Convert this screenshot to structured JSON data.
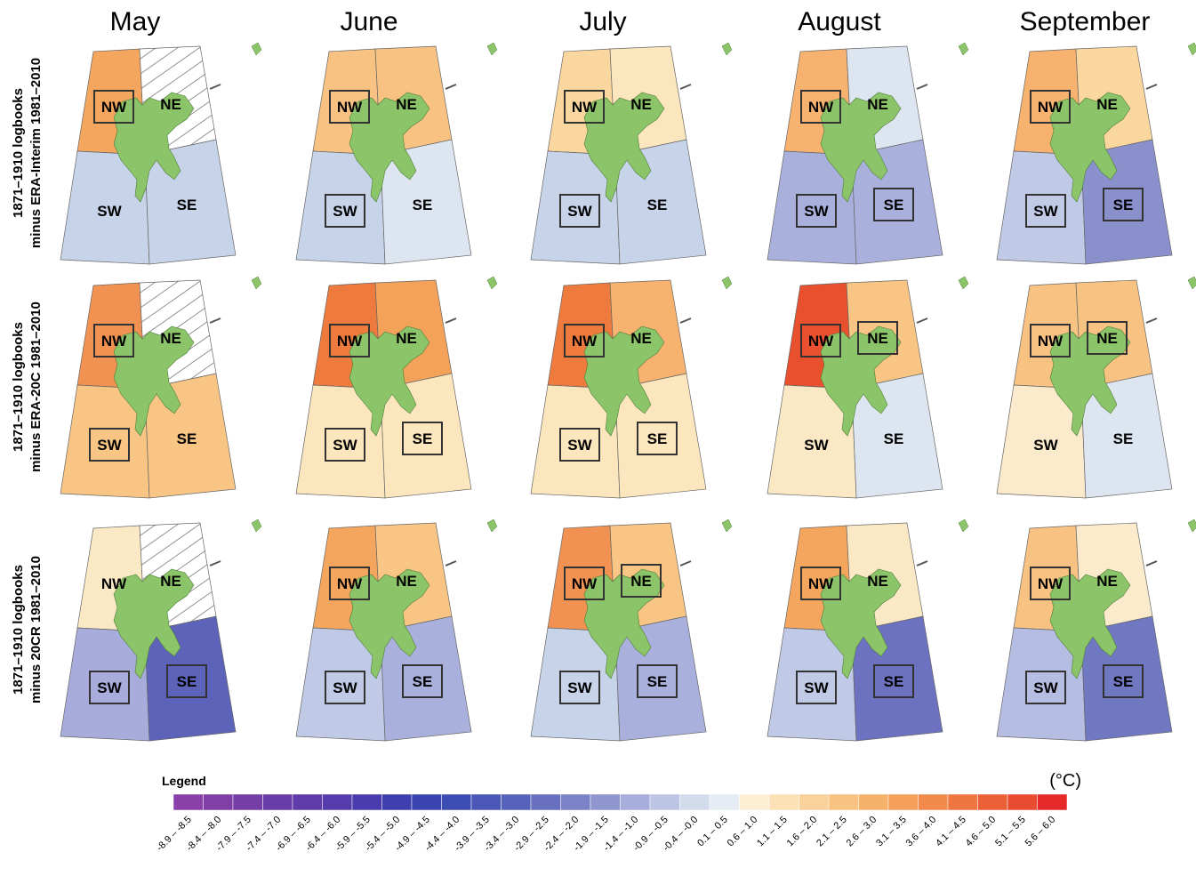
{
  "columns": [
    "May",
    "June",
    "July",
    "August",
    "September"
  ],
  "row_labels": [
    [
      "1871–1910 logbooks",
      "minus ERA-Interim 1981–2010"
    ],
    [
      "1871–1910 logbooks",
      "minus ERA-20C 1981–2010"
    ],
    [
      "1871–1910 logbooks",
      "minus 20CR 1981–2010"
    ]
  ],
  "panels": [
    [
      {
        "regions": [
          {
            "label": "NW",
            "color": "#f4a65e",
            "boxed": true,
            "hatched": false
          },
          {
            "label": "NE",
            "color": "#ffffff",
            "boxed": false,
            "hatched": true
          },
          {
            "label": "SW",
            "color": "#c7d3e8",
            "boxed": false,
            "hatched": false
          },
          {
            "label": "SE",
            "color": "#c7d3e8",
            "boxed": false,
            "hatched": false
          }
        ]
      },
      {
        "regions": [
          {
            "label": "NW",
            "color": "#f8c283",
            "boxed": true,
            "hatched": false
          },
          {
            "label": "NE",
            "color": "#f8c283",
            "boxed": false,
            "hatched": false
          },
          {
            "label": "SW",
            "color": "#c7d3e8",
            "boxed": true,
            "hatched": false
          },
          {
            "label": "SE",
            "color": "#dde6f0",
            "boxed": false,
            "hatched": false
          }
        ]
      },
      {
        "regions": [
          {
            "label": "NW",
            "color": "#fad79e",
            "boxed": true,
            "hatched": false
          },
          {
            "label": "NE",
            "color": "#fbe6bd",
            "boxed": false,
            "hatched": false
          },
          {
            "label": "SW",
            "color": "#c7d3e8",
            "boxed": true,
            "hatched": false
          },
          {
            "label": "SE",
            "color": "#c7d3e8",
            "boxed": false,
            "hatched": false
          }
        ]
      },
      {
        "regions": [
          {
            "label": "NW",
            "color": "#f6b26e",
            "boxed": true,
            "hatched": false
          },
          {
            "label": "NE",
            "color": "#dce5f0",
            "boxed": false,
            "hatched": false
          },
          {
            "label": "SW",
            "color": "#a9b0dc",
            "boxed": true,
            "hatched": false
          },
          {
            "label": "SE",
            "color": "#a9b0dc",
            "boxed": true,
            "hatched": false
          }
        ]
      },
      {
        "regions": [
          {
            "label": "NW",
            "color": "#f6b26e",
            "boxed": true,
            "hatched": false
          },
          {
            "label": "NE",
            "color": "#fad79e",
            "boxed": false,
            "hatched": false
          },
          {
            "label": "SW",
            "color": "#c0cae6",
            "boxed": true,
            "hatched": false
          },
          {
            "label": "SE",
            "color": "#8a90cc",
            "boxed": true,
            "hatched": false
          }
        ]
      }
    ],
    [
      {
        "regions": [
          {
            "label": "NW",
            "color": "#f29252",
            "boxed": true,
            "hatched": false
          },
          {
            "label": "NE",
            "color": "#ffffff",
            "boxed": false,
            "hatched": true
          },
          {
            "label": "SW",
            "color": "#f8c585",
            "boxed": true,
            "hatched": false
          },
          {
            "label": "SE",
            "color": "#f8c585",
            "boxed": false,
            "hatched": false
          }
        ]
      },
      {
        "regions": [
          {
            "label": "NW",
            "color": "#ee7a3e",
            "boxed": true,
            "hatched": false
          },
          {
            "label": "NE",
            "color": "#f4a25a",
            "boxed": false,
            "hatched": false
          },
          {
            "label": "SW",
            "color": "#fbe6bd",
            "boxed": true,
            "hatched": false
          },
          {
            "label": "SE",
            "color": "#fbe6bd",
            "boxed": true,
            "hatched": false
          }
        ]
      },
      {
        "regions": [
          {
            "label": "NW",
            "color": "#ee7a3e",
            "boxed": true,
            "hatched": false
          },
          {
            "label": "NE",
            "color": "#f6b26e",
            "boxed": false,
            "hatched": false
          },
          {
            "label": "SW",
            "color": "#fbe6bd",
            "boxed": true,
            "hatched": false
          },
          {
            "label": "SE",
            "color": "#fbe6bd",
            "boxed": true,
            "hatched": false
          }
        ]
      },
      {
        "regions": [
          {
            "label": "NW",
            "color": "#e8502e",
            "boxed": true,
            "hatched": false
          },
          {
            "label": "NE",
            "color": "#f8c585",
            "boxed": true,
            "hatched": false
          },
          {
            "label": "SW",
            "color": "#fbe9c6",
            "boxed": false,
            "hatched": false
          },
          {
            "label": "SE",
            "color": "#dde6f0",
            "boxed": false,
            "hatched": false
          }
        ]
      },
      {
        "regions": [
          {
            "label": "NW",
            "color": "#f8c283",
            "boxed": true,
            "hatched": false
          },
          {
            "label": "NE",
            "color": "#f8c283",
            "boxed": true,
            "hatched": false
          },
          {
            "label": "SW",
            "color": "#fbeacb",
            "boxed": false,
            "hatched": false
          },
          {
            "label": "SE",
            "color": "#dde6f0",
            "boxed": false,
            "hatched": false
          }
        ]
      }
    ],
    [
      {
        "regions": [
          {
            "label": "NW",
            "color": "#fbe9c6",
            "boxed": false,
            "hatched": false
          },
          {
            "label": "NE",
            "color": "#ffffff",
            "boxed": false,
            "hatched": true
          },
          {
            "label": "SW",
            "color": "#a7acdb",
            "boxed": true,
            "hatched": false
          },
          {
            "label": "SE",
            "color": "#5d63b8",
            "boxed": true,
            "hatched": false
          }
        ]
      },
      {
        "regions": [
          {
            "label": "NW",
            "color": "#f4a65e",
            "boxed": true,
            "hatched": false
          },
          {
            "label": "NE",
            "color": "#f8c585",
            "boxed": false,
            "hatched": false
          },
          {
            "label": "SW",
            "color": "#c0cae6",
            "boxed": true,
            "hatched": false
          },
          {
            "label": "SE",
            "color": "#a9b0dc",
            "boxed": true,
            "hatched": false
          }
        ]
      },
      {
        "regions": [
          {
            "label": "NW",
            "color": "#f29252",
            "boxed": true,
            "hatched": false
          },
          {
            "label": "NE",
            "color": "#f8c585",
            "boxed": true,
            "hatched": false
          },
          {
            "label": "SW",
            "color": "#c7d3e8",
            "boxed": true,
            "hatched": false
          },
          {
            "label": "SE",
            "color": "#a9b0dc",
            "boxed": true,
            "hatched": false
          }
        ]
      },
      {
        "regions": [
          {
            "label": "NW",
            "color": "#f4a65e",
            "boxed": true,
            "hatched": false
          },
          {
            "label": "NE",
            "color": "#fbe9c6",
            "boxed": false,
            "hatched": false
          },
          {
            "label": "SW",
            "color": "#c0cae6",
            "boxed": true,
            "hatched": false
          },
          {
            "label": "SE",
            "color": "#6c72c0",
            "boxed": true,
            "hatched": false
          }
        ]
      },
      {
        "regions": [
          {
            "label": "NW",
            "color": "#f8c283",
            "boxed": true,
            "hatched": false
          },
          {
            "label": "NE",
            "color": "#fbeacb",
            "boxed": false,
            "hatched": false
          },
          {
            "label": "SW",
            "color": "#b6bde2",
            "boxed": true,
            "hatched": false
          },
          {
            "label": "SE",
            "color": "#7078c2",
            "boxed": true,
            "hatched": false
          }
        ]
      }
    ]
  ],
  "legend": {
    "title": "Legend",
    "unit": "(°C)",
    "bins": [
      {
        "label": "-8.9 – -8.5",
        "color": "#8b3fa8"
      },
      {
        "label": "-8.4 – -8.0",
        "color": "#7f3fa6"
      },
      {
        "label": "-7.9 – -7.5",
        "color": "#753da6"
      },
      {
        "label": "-7.4 – -7.0",
        "color": "#6a3ca8"
      },
      {
        "label": "-6.9 – -6.5",
        "color": "#5f3aa9"
      },
      {
        "label": "-6.4 – -6.0",
        "color": "#553bac"
      },
      {
        "label": "-5.9 – -5.5",
        "color": "#4a3cae"
      },
      {
        "label": "-5.4 – -5.0",
        "color": "#3f3eaf"
      },
      {
        "label": "-4.9 – -4.5",
        "color": "#3a44b0"
      },
      {
        "label": "-4.4 – -4.0",
        "color": "#3e4db3"
      },
      {
        "label": "-3.9 – -3.5",
        "color": "#4a57b6"
      },
      {
        "label": "-3.4 – -3.0",
        "color": "#5762ba"
      },
      {
        "label": "-2.9 – -2.5",
        "color": "#6970c0"
      },
      {
        "label": "-2.4 – -2.0",
        "color": "#7c82c6"
      },
      {
        "label": "-1.9 – -1.5",
        "color": "#9096cf"
      },
      {
        "label": "-1.4 – -1.0",
        "color": "#a7aedb"
      },
      {
        "label": "-0.9 – -0.5",
        "color": "#bcc5e4"
      },
      {
        "label": "-0.4 – -0.0",
        "color": "#d3dcec"
      },
      {
        "label": "0.1 – 0.5",
        "color": "#e5ecf3"
      },
      {
        "label": "0.6 – 1.0",
        "color": "#fcefd4"
      },
      {
        "label": "1.1 – 1.5",
        "color": "#fbe1b5"
      },
      {
        "label": "1.6 – 2.0",
        "color": "#f9d19a"
      },
      {
        "label": "2.1 – 2.5",
        "color": "#f8c281"
      },
      {
        "label": "2.6 – 3.0",
        "color": "#f6b16b"
      },
      {
        "label": "3.1 – 3.5",
        "color": "#f4a05a"
      },
      {
        "label": "3.6 – 4.0",
        "color": "#f18a4b"
      },
      {
        "label": "4.1 – 4.5",
        "color": "#ee7640"
      },
      {
        "label": "4.6 – 5.0",
        "color": "#eb6037"
      },
      {
        "label": "5.1 – 5.5",
        "color": "#e94c30"
      },
      {
        "label": "5.6 – 6.0",
        "color": "#e62a2a"
      }
    ]
  }
}
